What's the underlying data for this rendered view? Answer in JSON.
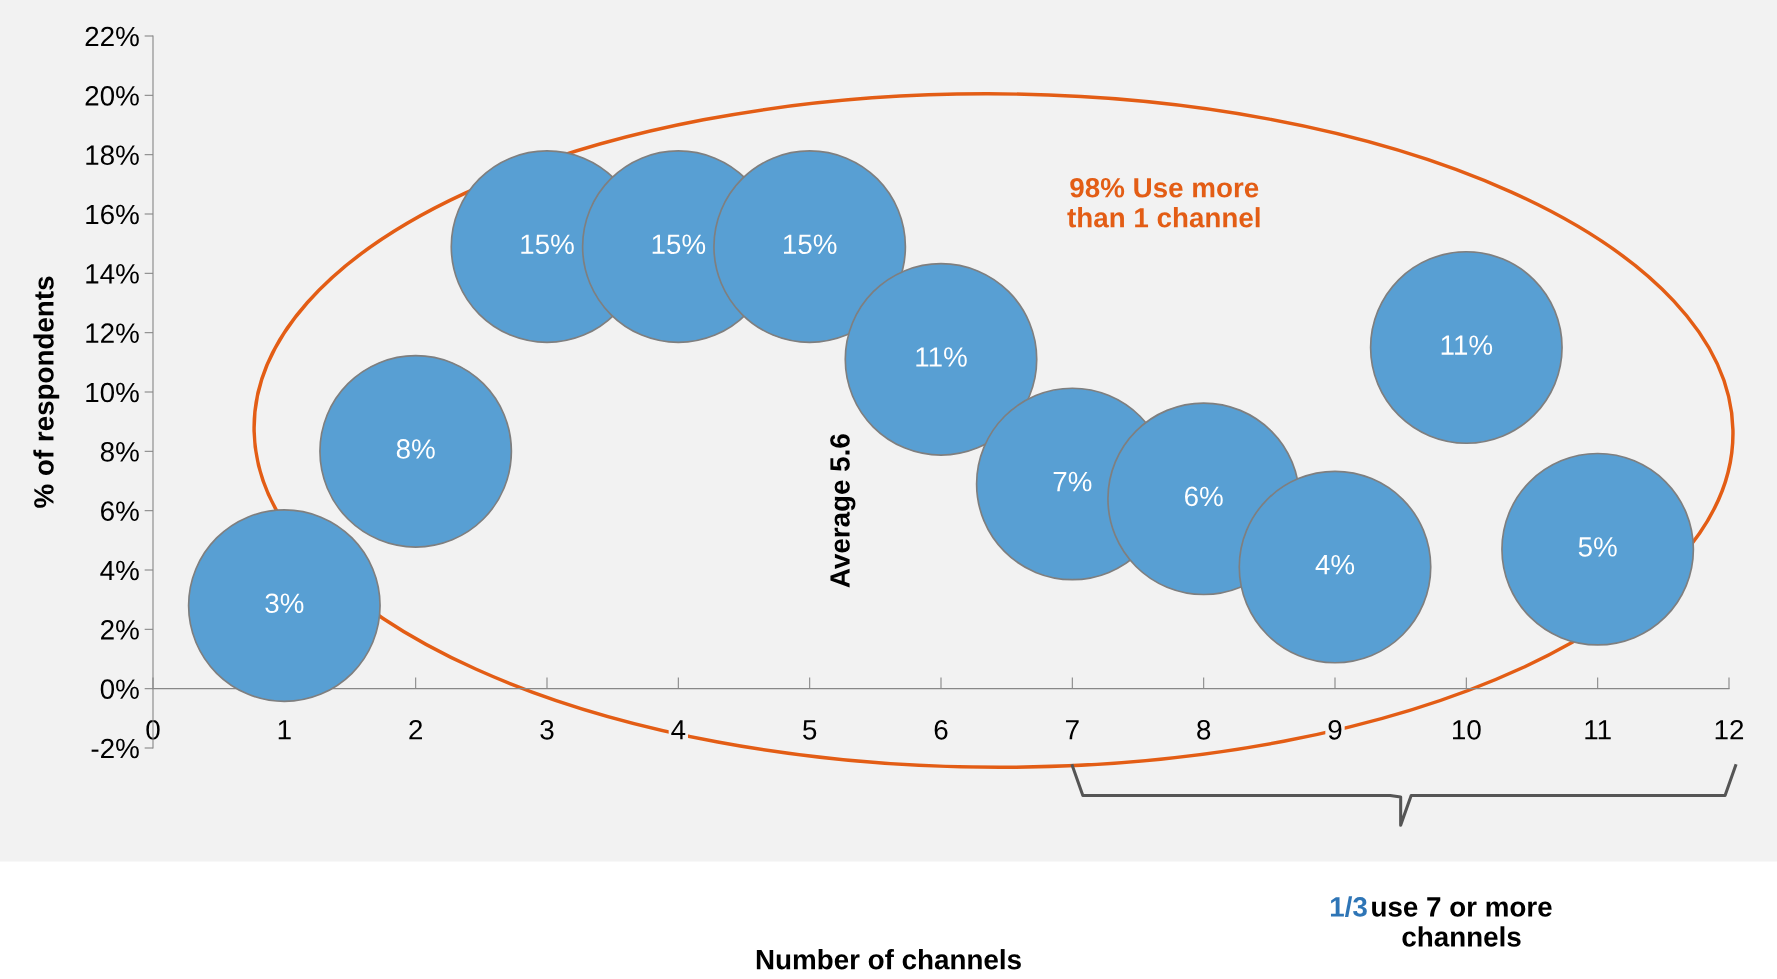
{
  "chart_data": {
    "type": "bubble",
    "ylabel": "% of respondents",
    "x": [
      1,
      2,
      3,
      4,
      5,
      6,
      7,
      8,
      9,
      10,
      11
    ],
    "series": [
      {
        "color": "#589fd3",
        "values": [
          2.8,
          8.0,
          14.9,
          14.9,
          14.9,
          11.1,
          6.9,
          6.4,
          4.1,
          11.5,
          4.7
        ],
        "sizes": [
          1,
          1,
          1,
          1,
          1,
          1,
          1,
          1,
          1,
          1,
          1
        ],
        "value_labels": [
          "3%",
          "8%",
          "15%",
          "15%",
          "15%",
          "11%",
          "7%",
          "6%",
          "4%",
          "11%",
          "5%"
        ]
      }
    ],
    "xlim": [
      0,
      12
    ],
    "xticks": [
      0,
      1,
      2,
      3,
      4,
      5,
      6,
      7,
      8,
      9,
      10,
      11,
      12
    ],
    "ylim": [
      -2,
      22
    ],
    "yticks": [
      {
        "value": -2,
        "label": "-2%"
      },
      {
        "value": 0,
        "label": "0%"
      },
      {
        "value": 2,
        "label": "2%"
      },
      {
        "value": 4,
        "label": "4%"
      },
      {
        "value": 6,
        "label": "6%"
      },
      {
        "value": 8,
        "label": "8%"
      },
      {
        "value": 10,
        "label": "10%"
      },
      {
        "value": 12,
        "label": "12%"
      },
      {
        "value": 14,
        "label": "14%"
      },
      {
        "value": 16,
        "label": "16%"
      },
      {
        "value": 18,
        "label": "18%"
      },
      {
        "value": 20,
        "label": "20%"
      },
      {
        "value": 22,
        "label": "22%"
      }
    ],
    "annotations": [
      "98% Use more\nthan 1 channel",
      "Average 5.6",
      "1/3",
      "use 7 or more\nchannels",
      "Number of channels"
    ],
    "grid": false,
    "legend": false
  }
}
